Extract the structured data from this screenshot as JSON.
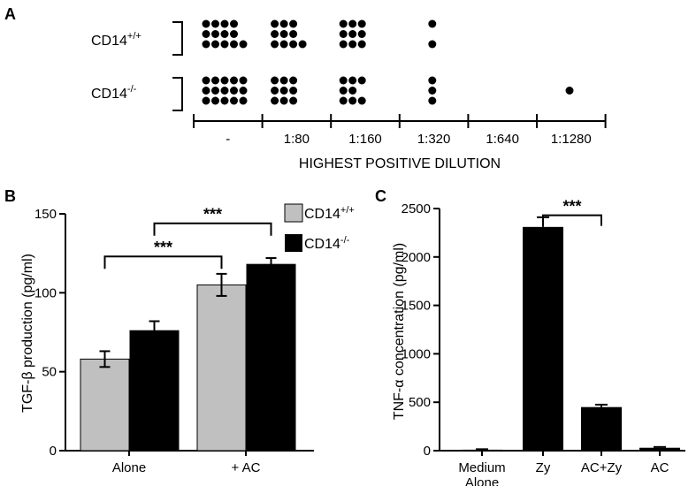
{
  "panels": {
    "a": "A",
    "b": "B",
    "c": "C"
  },
  "panel_a": {
    "groups": [
      {
        "name_base": "CD14",
        "name_sup": "+/+",
        "dots": [
          [
            4,
            4,
            5
          ],
          [
            3,
            3,
            4
          ],
          [
            3,
            3,
            3
          ],
          [
            1,
            0,
            1
          ],
          [
            0,
            0,
            0
          ],
          [
            0,
            0,
            0
          ]
        ]
      },
      {
        "name_base": "CD14",
        "name_sup": "-/-",
        "dots": [
          [
            5,
            5,
            5
          ],
          [
            3,
            3,
            3
          ],
          [
            3,
            2,
            3
          ],
          [
            1,
            1,
            1
          ],
          [
            0,
            0,
            0
          ],
          [
            0,
            1,
            0
          ]
        ]
      }
    ],
    "dilutions": [
      "-",
      "1:80",
      "1:160",
      "1:320",
      "1:640",
      "1:1280"
    ],
    "axis_title": "HIGHEST POSITIVE DILUTION"
  },
  "chart_data": [
    {
      "type": "bar",
      "panel": "B",
      "categories": [
        "Alone",
        "+ AC"
      ],
      "ylabel": "TGF-β production (pg/ml)",
      "ylim": [
        0,
        150
      ],
      "yticks": [
        0,
        50,
        100,
        150
      ],
      "series": [
        {
          "name_base": "CD14",
          "name_sup": "+/+",
          "color": "#c0c0c0",
          "values": [
            58,
            105
          ],
          "errors": [
            5,
            7
          ]
        },
        {
          "name_base": "CD14",
          "name_sup": "-/-",
          "color": "#000000",
          "values": [
            76,
            118
          ],
          "errors": [
            6,
            4
          ]
        }
      ],
      "significance": [
        {
          "label": "***",
          "from": [
            0,
            0
          ],
          "to": [
            1,
            0
          ],
          "y": 123
        },
        {
          "label": "***",
          "from": [
            0,
            1
          ],
          "to": [
            1,
            1
          ],
          "y": 144
        }
      ]
    },
    {
      "type": "bar",
      "panel": "C",
      "categories": [
        "Medium\nAlone",
        "Zy",
        "AC+Zy",
        "AC"
      ],
      "ylabel": "TNF-α concentration (pg/ml)",
      "ylim": [
        0,
        2500
      ],
      "yticks": [
        0,
        500,
        1000,
        1500,
        2000,
        2500
      ],
      "color": "#000000",
      "values": [
        10,
        2310,
        450,
        30
      ],
      "errors": [
        5,
        100,
        25,
        8
      ],
      "significance": [
        {
          "label": "***",
          "from": 1,
          "to": 2,
          "y": 2430
        }
      ]
    }
  ]
}
